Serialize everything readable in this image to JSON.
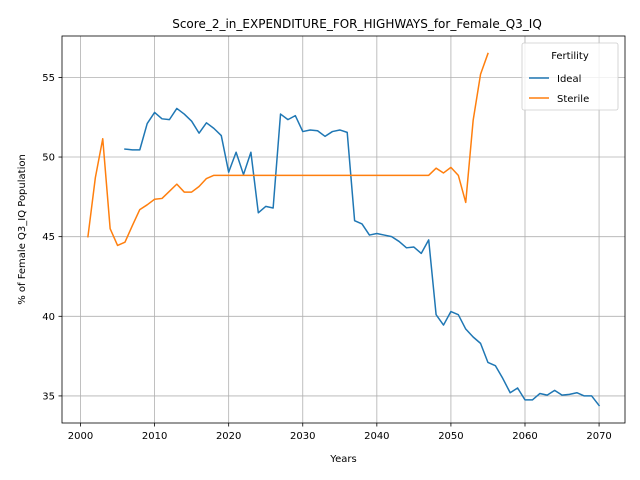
{
  "chart_data": {
    "type": "line",
    "title": "Score_2_in_EXPENDITURE_FOR_HIGHWAYS_for_Female_Q3_IQ",
    "xlabel": "Years",
    "ylabel": "% of Female Q3_IQ Population",
    "xlim": [
      1997.5,
      2073.5
    ],
    "ylim": [
      33.3,
      57.6
    ],
    "xticks": [
      2000,
      2010,
      2020,
      2030,
      2040,
      2050,
      2060,
      2070
    ],
    "yticks": [
      35,
      40,
      45,
      50,
      55
    ],
    "grid": true,
    "legend": {
      "title": "Fertility",
      "placement": "top-right"
    },
    "series": [
      {
        "name": "Ideal",
        "color": "#1f77b4",
        "x": [
          2006,
          2007,
          2008,
          2009,
          2010,
          2011,
          2012,
          2013,
          2014,
          2015,
          2016,
          2017,
          2018,
          2019,
          2020,
          2021,
          2022,
          2023,
          2024,
          2025,
          2026,
          2027,
          2028,
          2029,
          2030,
          2031,
          2032,
          2033,
          2034,
          2035,
          2036,
          2037,
          2038,
          2039,
          2040,
          2041,
          2042,
          2043,
          2044,
          2045,
          2046,
          2047,
          2048,
          2049,
          2050,
          2051,
          2052,
          2053,
          2054,
          2055,
          2056,
          2057,
          2058,
          2059,
          2060,
          2061,
          2062,
          2063,
          2064,
          2065,
          2066,
          2067,
          2068,
          2069,
          2070
        ],
        "values": [
          50.5,
          50.45,
          50.45,
          52.1,
          52.8,
          52.4,
          52.35,
          53.05,
          52.7,
          52.25,
          51.5,
          52.15,
          51.8,
          51.35,
          49.05,
          50.3,
          48.9,
          50.3,
          46.5,
          46.9,
          46.8,
          52.7,
          52.35,
          52.6,
          51.6,
          51.7,
          51.65,
          51.3,
          51.6,
          51.7,
          51.55,
          46.0,
          45.8,
          45.1,
          45.2,
          45.1,
          45.0,
          44.7,
          44.3,
          44.35,
          43.95,
          44.8,
          40.1,
          39.45,
          40.3,
          40.1,
          39.2,
          38.7,
          38.3,
          37.1,
          36.9,
          36.1,
          35.2,
          35.5,
          34.75,
          34.75,
          35.15,
          35.05,
          35.35,
          35.05,
          35.1,
          35.2,
          35.0,
          35.0,
          34.4
        ]
      },
      {
        "name": "Sterile",
        "color": "#ff7f0e",
        "x": [
          2001,
          2002,
          2003,
          2004,
          2005,
          2006,
          2007,
          2008,
          2009,
          2010,
          2011,
          2012,
          2013,
          2014,
          2015,
          2016,
          2017,
          2018,
          2019,
          2020,
          2021,
          2022,
          2023,
          2024,
          2025,
          2026,
          2027,
          2028,
          2029,
          2030,
          2031,
          2032,
          2033,
          2034,
          2035,
          2036,
          2037,
          2038,
          2039,
          2040,
          2041,
          2042,
          2043,
          2044,
          2045,
          2046,
          2047,
          2048,
          2049,
          2050,
          2051,
          2052,
          2053,
          2054,
          2055
        ],
        "values": [
          45.0,
          48.7,
          51.15,
          45.5,
          44.45,
          44.65,
          45.7,
          46.7,
          47.0,
          47.35,
          47.4,
          47.85,
          48.3,
          47.8,
          47.8,
          48.15,
          48.65,
          48.85,
          48.85,
          48.85,
          48.85,
          48.85,
          48.85,
          48.85,
          48.85,
          48.85,
          48.85,
          48.85,
          48.85,
          48.85,
          48.85,
          48.85,
          48.85,
          48.85,
          48.85,
          48.85,
          48.85,
          48.85,
          48.85,
          48.85,
          48.85,
          48.85,
          48.85,
          48.85,
          48.85,
          48.85,
          48.85,
          49.3,
          49.0,
          49.35,
          48.85,
          47.15,
          52.3,
          55.2,
          56.5
        ]
      }
    ]
  }
}
